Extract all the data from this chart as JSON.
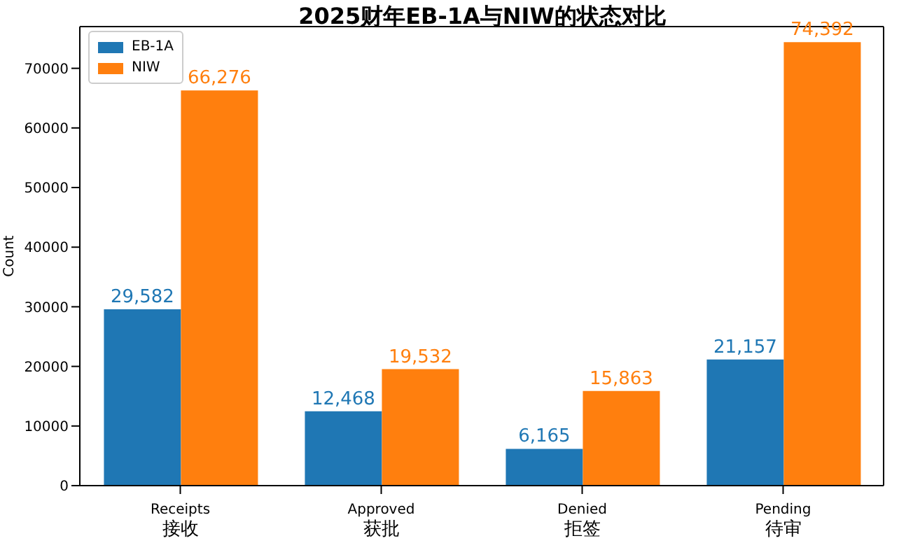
{
  "chart_data": {
    "type": "bar",
    "title": "2025财年EB-1A与NIW的状态对比",
    "ylabel": "Count",
    "categories": [
      "Receipts\n接收",
      "Approved\n获批",
      "Denied\n拒签",
      "Pending\n待审"
    ],
    "series": [
      {
        "name": "EB-1A",
        "color": "#1f77b4",
        "values": [
          29582,
          12468,
          6165,
          21157
        ]
      },
      {
        "name": "NIW",
        "color": "#ff7f0e",
        "values": [
          66276,
          19532,
          15863,
          74392
        ]
      }
    ],
    "value_labels": [
      [
        "29,582",
        "12,468",
        "6,165",
        "21,157"
      ],
      [
        "66,276",
        "19,532",
        "15,863",
        "74,392"
      ]
    ],
    "ylim": [
      0,
      77000
    ],
    "yticks": [
      0,
      10000,
      20000,
      30000,
      40000,
      50000,
      60000,
      70000
    ],
    "legend": "top left",
    "grid": false
  }
}
